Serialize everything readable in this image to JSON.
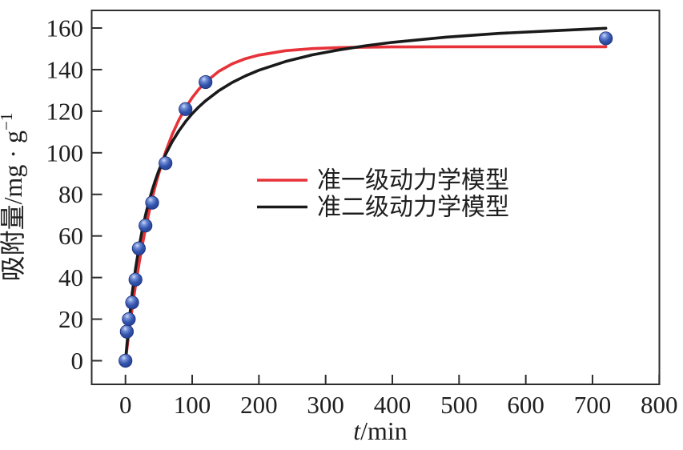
{
  "figure": {
    "background": "#ffffff",
    "text_color": "#1f1f1f",
    "frame_color": "#2e2e2e"
  },
  "chart_data": {
    "type": "scatter",
    "title": "",
    "xlabel": "t/min",
    "ylabel": "吸附量/mg · g⁻¹",
    "xlim": [
      -51,
      800
    ],
    "ylim": [
      -11.5,
      169.5
    ],
    "x_ticks": [
      0,
      100,
      200,
      300,
      400,
      500,
      600,
      700,
      800
    ],
    "y_ticks": [
      0,
      20,
      40,
      60,
      80,
      100,
      120,
      140,
      160
    ],
    "grid": false,
    "legend_position": "center-right",
    "scatter": {
      "marker": "sphere",
      "color": "#2f4da4",
      "t": [
        0,
        2,
        5,
        10,
        15,
        20,
        30,
        40,
        60,
        90,
        120,
        720
      ],
      "q": [
        0,
        14,
        20,
        28,
        39,
        54,
        65,
        76,
        95,
        121,
        134,
        155
      ]
    },
    "series": [
      {
        "name": "准一级动力学模型",
        "color": "#e63238",
        "t": [
          0,
          5,
          10,
          15,
          20,
          25,
          30,
          35,
          40,
          45,
          50,
          60,
          70,
          80,
          90,
          100,
          110,
          120,
          140,
          160,
          180,
          200,
          240,
          280,
          320,
          360,
          400,
          480,
          560,
          640,
          720
        ],
        "q": [
          0,
          13.1,
          25.1,
          36.1,
          46.1,
          55.2,
          63.5,
          71.1,
          78.1,
          84.4,
          90.2,
          100.3,
          108.8,
          115.8,
          121.6,
          126.5,
          130.6,
          134,
          139.2,
          142.8,
          145.3,
          147,
          149.1,
          150.1,
          150.6,
          150.8,
          150.9,
          151,
          151,
          151,
          151
        ]
      },
      {
        "name": "准二级动力学模型",
        "color": "#1a1a1a",
        "t": [
          0,
          5,
          10,
          15,
          20,
          25,
          30,
          35,
          40,
          45,
          50,
          60,
          70,
          80,
          90,
          100,
          110,
          120,
          140,
          160,
          180,
          200,
          240,
          280,
          320,
          360,
          400,
          480,
          560,
          640,
          720
        ],
        "q": [
          0,
          17.8,
          32.2,
          44.1,
          54.1,
          62.6,
          70,
          76.4,
          82,
          87,
          91.5,
          99.1,
          105.3,
          110.5,
          115,
          118.8,
          122.1,
          125,
          129.9,
          133.8,
          137,
          139.7,
          143.9,
          147.1,
          149.5,
          151.5,
          153.1,
          155.6,
          157.4,
          158.7,
          159.9
        ]
      }
    ]
  }
}
